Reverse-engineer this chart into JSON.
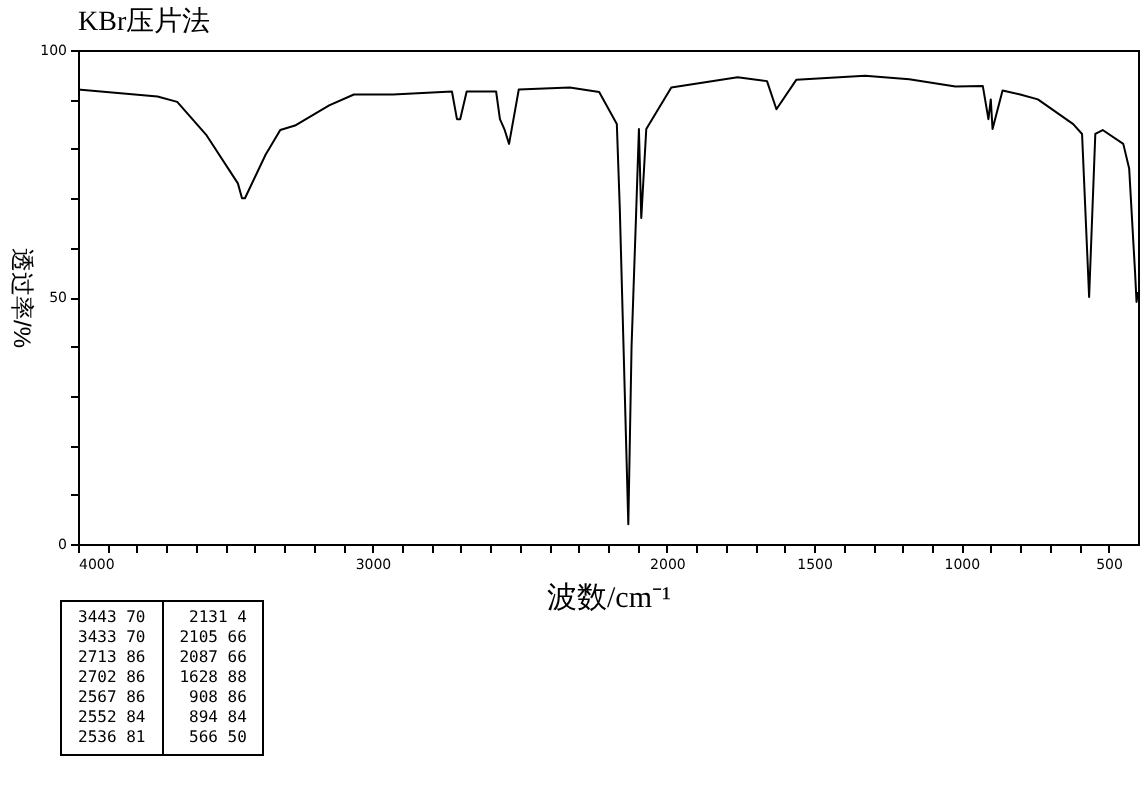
{
  "chart_data": {
    "type": "line",
    "title": "KBr压片法",
    "xlabel": "波数/cm⁻¹",
    "ylabel": "透过率/%",
    "x": [
      4000,
      3730,
      3663,
      3563,
      3457,
      3443,
      3433,
      3363,
      3313,
      3263,
      3147,
      3063,
      2930,
      2730,
      2713,
      2702,
      2680,
      2580,
      2567,
      2552,
      2536,
      2503,
      2330,
      2230,
      2170,
      2160,
      2150,
      2131,
      2120,
      2105,
      2095,
      2087,
      2070,
      1985,
      1760,
      1660,
      1628,
      1560,
      1327,
      1177,
      1020,
      927,
      908,
      900,
      894,
      860,
      800,
      740,
      620,
      590,
      566,
      545,
      520,
      450,
      430,
      410,
      405,
      400
    ],
    "series": [
      {
        "color": "#000000",
        "values": [
          92,
          90.6,
          89.5,
          82.7,
          73,
          70,
          70,
          78.8,
          83.8,
          84.7,
          88.8,
          91,
          91,
          91.6,
          86,
          86,
          91.6,
          91.6,
          86,
          84,
          81,
          92,
          92.4,
          91.5,
          85,
          68,
          46,
          4,
          40,
          66,
          84,
          66,
          84,
          92.4,
          94.5,
          93.7,
          88,
          94,
          94.8,
          94.1,
          92.6,
          92.7,
          86,
          90,
          84,
          91.8,
          91,
          90,
          85,
          83,
          50,
          83,
          83.8,
          81,
          76,
          55,
          49,
          51
        ]
      }
    ],
    "xlim": [
      4000,
      400
    ],
    "ylim": [
      0,
      100
    ],
    "xticks": [
      4000,
      {
        "value": 3900,
        "label": null
      },
      {
        "value": 3800,
        "label": null
      },
      {
        "value": 3700,
        "label": null
      },
      {
        "value": 3600,
        "label": null
      },
      {
        "value": 3500,
        "label": null
      },
      {
        "value": 3400,
        "label": null
      },
      {
        "value": 3300,
        "label": null
      },
      {
        "value": 3200,
        "label": null
      },
      {
        "value": 3100,
        "label": null
      },
      3000,
      {
        "value": 2900,
        "label": null
      },
      {
        "value": 2800,
        "label": null
      },
      {
        "value": 2700,
        "label": null
      },
      {
        "value": 2600,
        "label": null
      },
      {
        "value": 2500,
        "label": null
      },
      {
        "value": 2400,
        "label": null
      },
      {
        "value": 2300,
        "label": null
      },
      {
        "value": 2200,
        "label": null
      },
      {
        "value": 2100,
        "label": null
      },
      2000,
      {
        "value": 1900,
        "label": null
      },
      {
        "value": 1800,
        "label": null
      },
      {
        "value": 1700,
        "label": null
      },
      {
        "value": 1600,
        "label": null
      },
      1500,
      {
        "value": 1400,
        "label": null
      },
      {
        "value": 1300,
        "label": null
      },
      {
        "value": 1200,
        "label": null
      },
      {
        "value": 1100,
        "label": null
      },
      1000,
      {
        "value": 900,
        "label": null
      },
      {
        "value": 800,
        "label": null
      },
      {
        "value": 700,
        "label": null
      },
      {
        "value": 600,
        "label": null
      },
      500
    ],
    "yticks": [
      0,
      {
        "value": 10,
        "label": null
      },
      {
        "value": 20,
        "label": null
      },
      {
        "value": 30,
        "label": null
      },
      {
        "value": 40,
        "label": null
      },
      50,
      {
        "value": 60,
        "label": null
      },
      {
        "value": 70,
        "label": null
      },
      {
        "value": 80,
        "label": null
      },
      {
        "value": 90,
        "label": null
      },
      100
    ],
    "grid": false,
    "marker": "none",
    "line_style": "solid",
    "annotations": [
      "3443 70",
      "3433 70",
      "2713 86",
      "2702 86",
      "2567 86",
      "2552 84",
      "2536 81",
      "2131 4",
      "2105 66",
      "2087 66",
      "1628 88",
      "908 86",
      "894 84",
      "566 50"
    ]
  }
}
